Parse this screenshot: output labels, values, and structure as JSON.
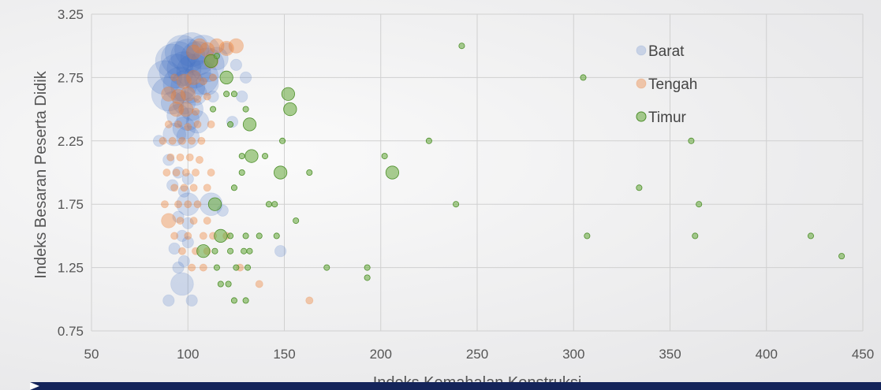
{
  "chart_data": {
    "type": "scatter",
    "title": "",
    "xlabel": "Indeks Kemahalan Konstruksi",
    "ylabel": "Indeks Besaran Peserta Didik",
    "xlim": [
      50,
      450
    ],
    "ylim": [
      0.75,
      3.25
    ],
    "xticks": [
      50,
      100,
      150,
      200,
      250,
      300,
      350,
      400,
      450
    ],
    "yticks": [
      0.75,
      1.25,
      1.75,
      2.25,
      2.75,
      3.25
    ],
    "ytick_labels": [
      "0.75",
      "1.25",
      "1.75",
      "2.25",
      "2.75",
      "3.25"
    ],
    "grid": true,
    "legend_position": "top-right",
    "series": [
      {
        "name": "Barat",
        "color": "#4472c4",
        "points": [
          [
            88,
            2.75,
            3
          ],
          [
            90,
            2.62,
            3
          ],
          [
            92,
            2.88,
            3
          ],
          [
            95,
            2.9,
            3
          ],
          [
            97,
            2.95,
            3
          ],
          [
            100,
            2.92,
            3
          ],
          [
            102,
            2.97,
            3
          ],
          [
            105,
            2.9,
            3
          ],
          [
            108,
            2.95,
            3
          ],
          [
            110,
            2.85,
            3
          ],
          [
            94,
            2.8,
            3
          ],
          [
            98,
            2.82,
            3
          ],
          [
            103,
            2.8,
            3
          ],
          [
            107,
            2.75,
            3
          ],
          [
            96,
            2.7,
            3
          ],
          [
            100,
            2.68,
            3
          ],
          [
            104,
            2.62,
            2
          ],
          [
            92,
            2.55,
            2
          ],
          [
            98,
            2.55,
            2
          ],
          [
            102,
            2.5,
            2
          ],
          [
            95,
            2.45,
            2
          ],
          [
            100,
            2.42,
            2
          ],
          [
            105,
            2.4,
            2
          ],
          [
            98,
            2.35,
            2
          ],
          [
            93,
            2.3,
            2
          ],
          [
            100,
            2.28,
            2
          ],
          [
            85,
            2.25,
            1
          ],
          [
            110,
            2.7,
            2
          ],
          [
            115,
            2.9,
            2
          ],
          [
            113,
            2.6,
            1
          ],
          [
            90,
            2.1,
            1
          ],
          [
            95,
            2.0,
            1
          ],
          [
            100,
            1.95,
            1
          ],
          [
            92,
            1.9,
            1
          ],
          [
            98,
            1.85,
            1
          ],
          [
            100,
            1.75,
            2
          ],
          [
            95,
            1.65,
            1
          ],
          [
            100,
            1.6,
            1
          ],
          [
            112,
            1.75,
            2
          ],
          [
            118,
            1.7,
            1
          ],
          [
            97,
            1.5,
            1
          ],
          [
            100,
            1.45,
            1
          ],
          [
            93,
            1.4,
            1
          ],
          [
            98,
            1.3,
            1
          ],
          [
            95,
            1.25,
            1
          ],
          [
            97,
            1.12,
            2
          ],
          [
            90,
            0.99,
            1
          ],
          [
            102,
            0.99,
            1
          ],
          [
            120,
            2.98,
            1
          ],
          [
            125,
            2.85,
            1
          ],
          [
            128,
            2.6,
            1
          ],
          [
            123,
            2.4,
            1
          ],
          [
            130,
            2.75,
            1
          ],
          [
            148,
            1.38,
            1
          ]
        ]
      },
      {
        "name": "Tengah",
        "color": "#ed7d31",
        "points": [
          [
            103,
            2.95,
            2
          ],
          [
            106,
            3.0,
            2
          ],
          [
            110,
            2.97,
            2
          ],
          [
            115,
            3.0,
            2
          ],
          [
            120,
            2.98,
            2
          ],
          [
            125,
            3.0,
            2
          ],
          [
            112,
            2.88,
            2
          ],
          [
            93,
            2.75,
            1
          ],
          [
            98,
            2.72,
            2
          ],
          [
            103,
            2.75,
            2
          ],
          [
            108,
            2.72,
            1
          ],
          [
            113,
            2.75,
            1
          ],
          [
            90,
            2.62,
            2
          ],
          [
            95,
            2.6,
            2
          ],
          [
            100,
            2.62,
            2
          ],
          [
            105,
            2.58,
            1
          ],
          [
            110,
            2.6,
            1
          ],
          [
            94,
            2.5,
            2
          ],
          [
            99,
            2.5,
            2
          ],
          [
            104,
            2.48,
            1
          ],
          [
            90,
            2.38,
            1
          ],
          [
            95,
            2.38,
            1
          ],
          [
            100,
            2.36,
            1
          ],
          [
            105,
            2.38,
            1
          ],
          [
            112,
            2.38,
            1
          ],
          [
            87,
            2.25,
            1
          ],
          [
            92,
            2.25,
            1
          ],
          [
            97,
            2.25,
            1
          ],
          [
            102,
            2.25,
            1
          ],
          [
            107,
            2.25,
            1
          ],
          [
            91,
            2.12,
            1
          ],
          [
            96,
            2.12,
            1
          ],
          [
            101,
            2.12,
            1
          ],
          [
            106,
            2.1,
            1
          ],
          [
            89,
            2.0,
            1
          ],
          [
            94,
            2.0,
            1
          ],
          [
            99,
            2.0,
            1
          ],
          [
            104,
            2.0,
            1
          ],
          [
            112,
            2.0,
            1
          ],
          [
            93,
            1.88,
            1
          ],
          [
            98,
            1.88,
            1
          ],
          [
            103,
            1.88,
            1
          ],
          [
            110,
            1.88,
            1
          ],
          [
            88,
            1.75,
            1
          ],
          [
            95,
            1.75,
            1
          ],
          [
            100,
            1.75,
            1
          ],
          [
            105,
            1.75,
            1
          ],
          [
            90,
            1.62,
            2
          ],
          [
            96,
            1.62,
            1
          ],
          [
            103,
            1.62,
            1
          ],
          [
            110,
            1.62,
            1
          ],
          [
            93,
            1.5,
            1
          ],
          [
            100,
            1.5,
            1
          ],
          [
            108,
            1.5,
            1
          ],
          [
            113,
            1.5,
            1
          ],
          [
            120,
            1.5,
            1
          ],
          [
            97,
            1.38,
            1
          ],
          [
            104,
            1.38,
            1
          ],
          [
            110,
            1.38,
            1
          ],
          [
            102,
            1.25,
            1
          ],
          [
            108,
            1.25,
            1
          ],
          [
            137,
            1.12,
            1
          ],
          [
            163,
            0.99,
            1
          ],
          [
            127,
            1.25,
            1
          ]
        ]
      },
      {
        "name": "Timur",
        "color": "#70ad47",
        "points": [
          [
            242,
            3.0,
            1
          ],
          [
            305,
            2.75,
            1
          ],
          [
            112,
            2.88,
            2
          ],
          [
            115,
            2.92,
            1
          ],
          [
            120,
            2.75,
            2
          ],
          [
            152,
            2.62,
            2
          ],
          [
            120,
            2.62,
            1
          ],
          [
            124,
            2.62,
            1
          ],
          [
            113,
            2.5,
            1
          ],
          [
            130,
            2.5,
            1
          ],
          [
            153,
            2.5,
            2
          ],
          [
            122,
            2.38,
            1
          ],
          [
            132,
            2.38,
            2
          ],
          [
            149,
            2.25,
            1
          ],
          [
            225,
            2.25,
            1
          ],
          [
            361,
            2.25,
            1
          ],
          [
            128,
            2.13,
            1
          ],
          [
            133,
            2.13,
            2
          ],
          [
            140,
            2.13,
            1
          ],
          [
            202,
            2.13,
            1
          ],
          [
            148,
            2.0,
            2
          ],
          [
            163,
            2.0,
            1
          ],
          [
            206,
            2.0,
            2
          ],
          [
            128,
            2.0,
            1
          ],
          [
            124,
            1.88,
            1
          ],
          [
            334,
            1.88,
            1
          ],
          [
            114,
            1.75,
            2
          ],
          [
            142,
            1.75,
            1
          ],
          [
            145,
            1.75,
            1
          ],
          [
            239,
            1.75,
            1
          ],
          [
            365,
            1.75,
            1
          ],
          [
            156,
            1.62,
            1
          ],
          [
            117,
            1.5,
            2
          ],
          [
            122,
            1.5,
            1
          ],
          [
            130,
            1.5,
            1
          ],
          [
            137,
            1.5,
            1
          ],
          [
            146,
            1.5,
            1
          ],
          [
            307,
            1.5,
            1
          ],
          [
            363,
            1.5,
            1
          ],
          [
            423,
            1.5,
            1
          ],
          [
            108,
            1.38,
            2
          ],
          [
            114,
            1.38,
            1
          ],
          [
            122,
            1.38,
            1
          ],
          [
            129,
            1.38,
            1
          ],
          [
            132,
            1.38,
            1
          ],
          [
            439,
            1.34,
            1
          ],
          [
            115,
            1.25,
            1
          ],
          [
            125,
            1.25,
            1
          ],
          [
            131,
            1.25,
            1
          ],
          [
            172,
            1.25,
            1
          ],
          [
            193,
            1.25,
            1
          ],
          [
            193,
            1.17,
            1
          ],
          [
            117,
            1.12,
            1
          ],
          [
            121,
            1.12,
            1
          ],
          [
            130,
            0.99,
            1
          ],
          [
            124,
            0.99,
            1
          ]
        ]
      }
    ]
  }
}
